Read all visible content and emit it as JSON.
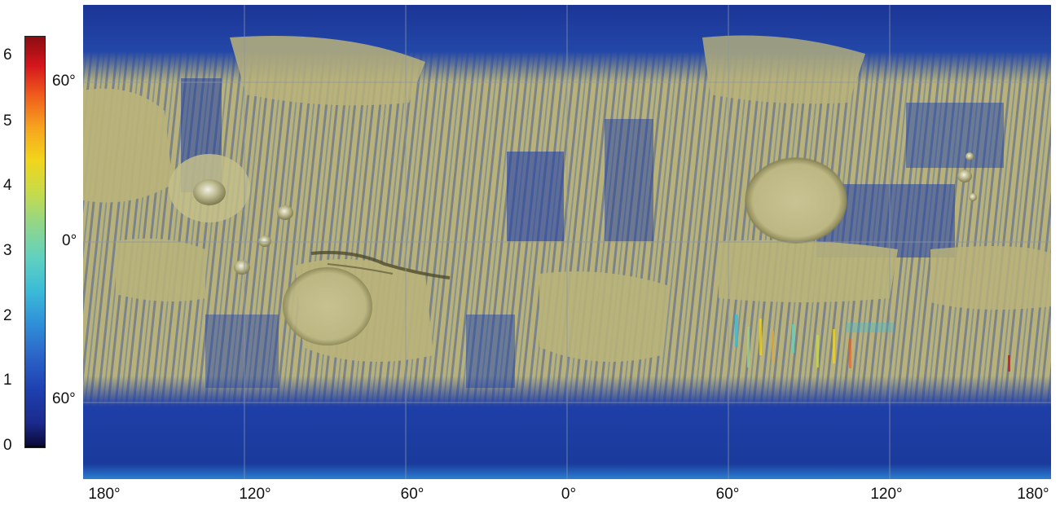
{
  "colorbar": {
    "ticks": [
      "0",
      "1",
      "2",
      "3",
      "4",
      "5",
      "6"
    ],
    "min": 0,
    "max": 6.4,
    "colors": [
      "#0b0b3a",
      "#1e40b0",
      "#2f8fd8",
      "#5fd1c0",
      "#c6db4a",
      "#f2d51c",
      "#ef5a1c",
      "#d4161c",
      "#8a0d12"
    ]
  },
  "map": {
    "latitude_labels": [
      "60°",
      "0°",
      "60°"
    ],
    "longitude_labels": [
      "180°",
      "120°",
      "60°",
      "0°",
      "60°",
      "120°",
      "180°"
    ],
    "terrain_color": "#b8b27a",
    "shade_color": "#8c8754",
    "data_color_low": "#1a3a9c",
    "data_color_mid": "#3b7fd0",
    "grid_color": "#8a95a8"
  }
}
